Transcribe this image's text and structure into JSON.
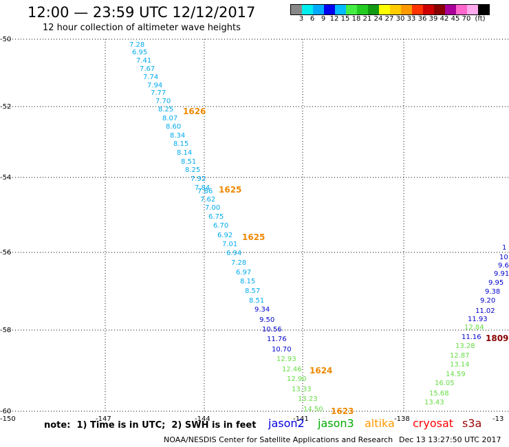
{
  "header": {
    "title": "12:00 — 23:59 UTC 12/12/2017",
    "subtitle": "12 hour collection of altimeter wave heights"
  },
  "color_scale": {
    "colors": [
      "#888888",
      "#00eeee",
      "#00aaff",
      "#0000ee",
      "#00bbff",
      "#44ee44",
      "#22cc22",
      "#119911",
      "#ffff00",
      "#ffcc00",
      "#ff9900",
      "#ff3300",
      "#cc0000",
      "#880000",
      "#aa0099",
      "#ff66cc",
      "#ffaaee",
      "#000000"
    ],
    "labels": [
      "3",
      "6",
      "9",
      "12",
      "15",
      "18",
      "21",
      "24",
      "27",
      "30",
      "33",
      "36",
      "39",
      "42",
      "45",
      "70",
      "(ft)"
    ]
  },
  "map": {
    "lat_labels": [
      "-50",
      "-52",
      "-54",
      "-56",
      "-58",
      "-60"
    ],
    "lon_labels": [
      "-150",
      "-147",
      "-144",
      "-141",
      "-138",
      "-13"
    ]
  },
  "tracks": [
    {
      "color": "#00aaee",
      "values": [
        "7.28",
        "6.95",
        "7.41",
        "7.67",
        "7.74",
        "7.94",
        "7.77",
        "7.70",
        "8.25",
        "8.07",
        "8.60",
        "8.34",
        "8.15",
        "8.14",
        "8.51",
        "8.25",
        "7.92",
        "7.84",
        "7.86",
        "7.62",
        "7.00",
        "6.75",
        "6.70",
        "6.92",
        "7.01",
        "6.94",
        "7.28",
        "6.97",
        "8.15",
        "8.57",
        "8.51"
      ]
    },
    {
      "color": "#0000cc",
      "values": [
        "9.34",
        "9.50",
        "10.56",
        "11.76",
        "10.70"
      ]
    },
    {
      "color": "#66dd44",
      "values": [
        "12.93",
        "12.46",
        "12.90",
        "13.33",
        "13.23",
        "14.50"
      ]
    },
    {
      "color": "#0000cc",
      "values": [
        "1",
        "10",
        "9.6",
        "9.91",
        "9.95",
        "9.38",
        "9.20",
        "11.02",
        "11.93",
        "11.16"
      ]
    },
    {
      "color": "#66dd44",
      "values": [
        "12.84",
        "13.28",
        "12.87",
        "13.14",
        "14.59",
        "16.05",
        "15.68",
        "13.43"
      ]
    }
  ],
  "time_labels": [
    {
      "text": "1626",
      "color": "#ee8800"
    },
    {
      "text": "1625",
      "color": "#ee8800"
    },
    {
      "text": "1625",
      "color": "#ee8800"
    },
    {
      "text": "1624",
      "color": "#ee8800"
    },
    {
      "text": "1623",
      "color": "#ee8800"
    },
    {
      "text": "1809",
      "color": "#880000"
    }
  ],
  "note": "note:  1) Time is in UTC;  2) SWH is in feet",
  "satellites": [
    {
      "name": "jason2",
      "color": "#0000dd"
    },
    {
      "name": "jason3",
      "color": "#00aa00"
    },
    {
      "name": "altika",
      "color": "#ff9900"
    },
    {
      "name": "cryosat",
      "color": "#ff0000"
    },
    {
      "name": "s3a",
      "color": "#990000"
    }
  ],
  "footer": {
    "source": "NOAA/NESDIS Center for Satellite Applications and Research",
    "timestamp": "Dec 13 13:27:50 UTC 2017"
  }
}
